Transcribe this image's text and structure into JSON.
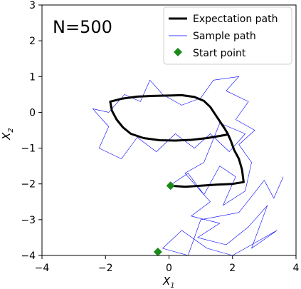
{
  "chart_data": {
    "type": "line",
    "annotation": "N=500",
    "xlabel_main": "X",
    "xlabel_sub": "1",
    "ylabel_main": "X",
    "ylabel_sub": "2",
    "xlim": [
      -4,
      4
    ],
    "ylim": [
      -4,
      3
    ],
    "xticks": [
      -4,
      -2,
      0,
      2,
      4
    ],
    "yticks": [
      -4,
      -3,
      -2,
      -1,
      0,
      1,
      2,
      3
    ],
    "grid": false,
    "legend_position": "top-right",
    "colors": {
      "expectation": "#000000",
      "sample": "#0000ff",
      "start": "#1a8a1a"
    },
    "series": [
      {
        "name": "Expectation path",
        "style": "thick-line",
        "points": [
          [
            0.05,
            -2.05
          ],
          [
            0.5,
            -2.08
          ],
          [
            1.0,
            -2.05
          ],
          [
            1.5,
            -2.02
          ],
          [
            2.0,
            -2.0
          ],
          [
            2.35,
            -1.95
          ],
          [
            2.3,
            -1.6
          ],
          [
            2.2,
            -1.3
          ],
          [
            2.05,
            -1.05
          ],
          [
            1.95,
            -0.8
          ],
          [
            1.85,
            -0.6
          ],
          [
            1.75,
            -0.45
          ],
          [
            1.6,
            -0.25
          ],
          [
            1.45,
            -0.05
          ],
          [
            1.3,
            0.15
          ],
          [
            1.1,
            0.32
          ],
          [
            0.8,
            0.43
          ],
          [
            0.4,
            0.48
          ],
          [
            0.0,
            0.47
          ],
          [
            -0.5,
            0.46
          ],
          [
            -1.0,
            0.44
          ],
          [
            -1.5,
            0.38
          ],
          [
            -1.85,
            0.3
          ],
          [
            -1.8,
            0.05
          ],
          [
            -1.65,
            -0.2
          ],
          [
            -1.45,
            -0.42
          ],
          [
            -1.2,
            -0.6
          ],
          [
            -0.8,
            -0.72
          ],
          [
            -0.3,
            -0.78
          ],
          [
            0.2,
            -0.79
          ],
          [
            0.7,
            -0.77
          ],
          [
            1.2,
            -0.72
          ],
          [
            1.6,
            -0.66
          ],
          [
            1.85,
            -0.62
          ]
        ]
      },
      {
        "name": "Sample path",
        "style": "thin-line",
        "points": [
          [
            0.1,
            -2.0
          ],
          [
            0.6,
            -1.7
          ],
          [
            1.1,
            -2.3
          ],
          [
            1.6,
            -1.5
          ],
          [
            2.1,
            -1.8
          ],
          [
            1.7,
            -2.6
          ],
          [
            2.4,
            -2.2
          ],
          [
            2.6,
            -1.4
          ],
          [
            2.2,
            -0.9
          ],
          [
            2.7,
            -0.5
          ],
          [
            2.1,
            -0.2
          ],
          [
            2.5,
            0.3
          ],
          [
            1.8,
            0.6
          ],
          [
            2.2,
            1.0
          ],
          [
            1.4,
            0.9
          ],
          [
            1.0,
            0.4
          ],
          [
            0.4,
            0.2
          ],
          [
            -0.2,
            0.5
          ],
          [
            -0.6,
            0.9
          ],
          [
            -0.9,
            0.3
          ],
          [
            -1.4,
            0.5
          ],
          [
            -1.9,
            0.0
          ],
          [
            -2.4,
            0.1
          ],
          [
            -1.9,
            -0.4
          ],
          [
            -2.2,
            -1.0
          ],
          [
            -1.5,
            -1.3
          ],
          [
            -1.0,
            -0.7
          ],
          [
            -0.4,
            -1.1
          ],
          [
            0.2,
            -0.6
          ],
          [
            0.8,
            -1.0
          ],
          [
            1.3,
            -0.6
          ],
          [
            1.9,
            -1.1
          ],
          [
            2.4,
            -0.6
          ],
          [
            1.6,
            -0.3
          ],
          [
            1.1,
            -1.4
          ],
          [
            0.5,
            -1.7
          ],
          [
            1.3,
            -2.5
          ],
          [
            0.7,
            -2.9
          ],
          [
            1.6,
            -3.1
          ],
          [
            0.9,
            -3.5
          ],
          [
            1.8,
            -3.7
          ],
          [
            2.5,
            -3.2
          ],
          [
            3.1,
            -2.6
          ],
          [
            2.6,
            -3.8
          ],
          [
            3.4,
            -3.3
          ],
          [
            2.0,
            -4.0
          ],
          [
            1.2,
            -3.8
          ],
          [
            0.4,
            -3.3
          ],
          [
            -0.2,
            -3.8
          ],
          [
            0.6,
            -4.0
          ],
          [
            1.0,
            -3.0
          ],
          [
            2.2,
            -2.8
          ],
          [
            3.0,
            -1.9
          ],
          [
            3.3,
            -2.4
          ],
          [
            3.6,
            -1.8
          ]
        ]
      },
      {
        "name": "Start point",
        "style": "diamond-marker",
        "points": [
          [
            0.05,
            -2.05
          ],
          [
            -0.35,
            -3.9
          ]
        ]
      }
    ]
  }
}
